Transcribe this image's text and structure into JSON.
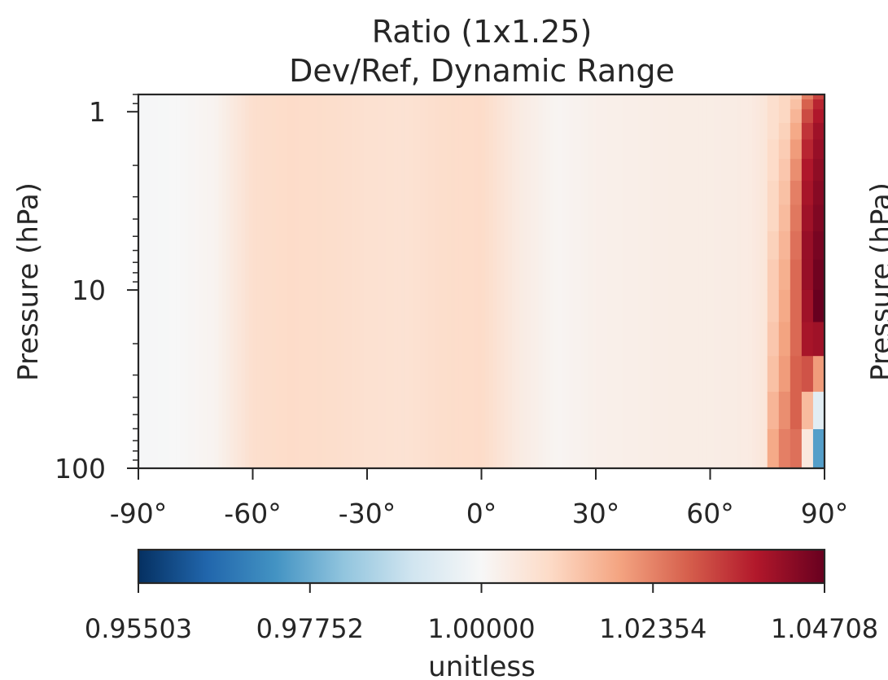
{
  "chart_data": {
    "type": "heatmap",
    "title": "Ratio (1x1.25)",
    "subtitle": "Dev/Ref, Dynamic Range",
    "xlabel": "",
    "ylabel": "Pressure (hPa)",
    "ylabel_partial_right": "Pressure (hPa)",
    "x_ticks": [
      {
        "value": -90,
        "label": "-90°"
      },
      {
        "value": -60,
        "label": "-60°"
      },
      {
        "value": -30,
        "label": "-30°"
      },
      {
        "value": 0,
        "label": "0°"
      },
      {
        "value": 30,
        "label": "30°"
      },
      {
        "value": 60,
        "label": "60°"
      },
      {
        "value": 90,
        "label": "90°"
      }
    ],
    "xlim": [
      -90,
      90
    ],
    "y_ticks": [
      {
        "value": 1,
        "label": "1"
      },
      {
        "value": 10,
        "label": "10"
      },
      {
        "value": 100,
        "label": "100"
      }
    ],
    "ylim": [
      100,
      0.8
    ],
    "y_scale": "log",
    "y_inverted": true,
    "colorbar": {
      "label": "unitless",
      "min": 0.95503,
      "max": 1.04708,
      "center": 1.0,
      "colormap": "RdBu_r",
      "ticks": [
        {
          "value": 0.95503,
          "label": "0.95503"
        },
        {
          "value": 0.97752,
          "label": "0.97752"
        },
        {
          "value": 1.0,
          "label": "1.00000"
        },
        {
          "value": 1.02354,
          "label": "1.02354"
        },
        {
          "value": 1.04708,
          "label": "1.04708"
        }
      ],
      "stops": [
        "#053061",
        "#2166ac",
        "#4393c3",
        "#92c5de",
        "#d1e5f0",
        "#f7f7f7",
        "#fddbc7",
        "#f4a582",
        "#d6604d",
        "#b2182b",
        "#67001f"
      ]
    },
    "background_profile": {
      "lat": [
        -90,
        -80,
        -70,
        -60,
        -50,
        -40,
        -30,
        -20,
        -10,
        0,
        10,
        20,
        30,
        40,
        50,
        60,
        70,
        75
      ],
      "ratio": [
        0.9995,
        1.0,
        1.0015,
        1.008,
        1.009,
        1.0085,
        1.0075,
        1.007,
        1.0085,
        1.009,
        1.004,
        1.001,
        1.0025,
        1.003,
        1.0035,
        1.0035,
        1.004,
        1.006
      ]
    },
    "polar_columns": [
      {
        "lat": 76.5,
        "ratio_by_level": [
          1.008,
          1.008,
          1.008,
          1.008,
          1.009,
          1.009,
          1.01,
          1.01,
          1.011,
          1.012,
          1.012,
          1.013,
          1.014,
          1.016,
          1.018
        ]
      },
      {
        "lat": 79.5,
        "ratio_by_level": [
          1.01,
          1.01,
          1.01,
          1.011,
          1.012,
          1.013,
          1.014,
          1.015,
          1.016,
          1.017,
          1.018,
          1.019,
          1.02,
          1.022,
          1.024
        ]
      },
      {
        "lat": 82.5,
        "ratio_by_level": [
          1.012,
          1.014,
          1.016,
          1.018,
          1.02,
          1.022,
          1.024,
          1.025,
          1.026,
          1.027,
          1.027,
          1.027,
          1.028,
          1.028,
          1.026
        ]
      },
      {
        "lat": 85.5,
        "ratio_by_level": [
          1.024,
          1.028,
          1.031,
          1.034,
          1.036,
          1.038,
          1.039,
          1.04,
          1.041,
          1.041,
          1.04,
          1.039,
          1.03,
          1.015,
          1.005
        ]
      },
      {
        "lat": 88.5,
        "ratio_by_level": [
          1.032,
          1.036,
          1.038,
          1.04,
          1.041,
          1.042,
          1.043,
          1.044,
          1.045,
          1.046,
          1.047,
          1.04,
          1.02,
          0.995,
          0.975
        ]
      }
    ]
  }
}
